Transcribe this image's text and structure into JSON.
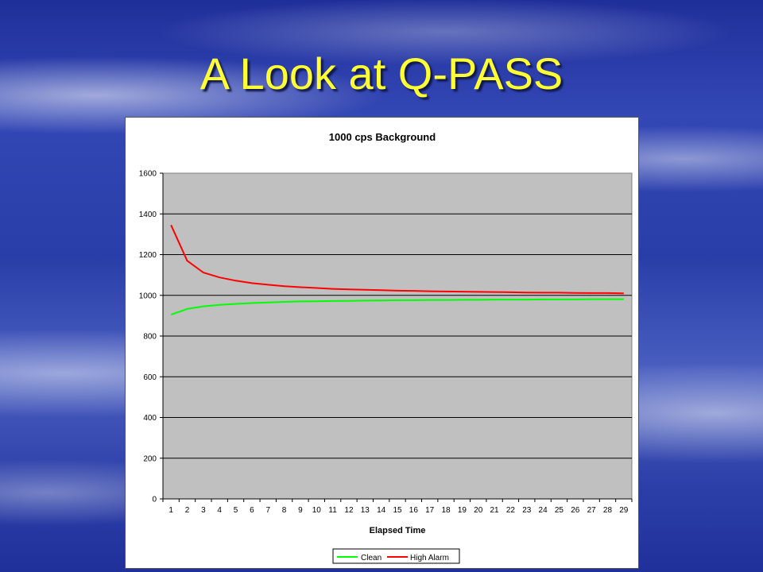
{
  "slide": {
    "title": "A Look at Q-PASS"
  },
  "chart_data": {
    "type": "line",
    "title": "1000 cps Background",
    "xlabel": "Elapsed Time",
    "ylabel": "",
    "ylim": [
      0,
      1600
    ],
    "yticks": [
      0,
      200,
      400,
      600,
      800,
      1000,
      1200,
      1400,
      1600
    ],
    "categories": [
      1,
      2,
      3,
      4,
      5,
      6,
      7,
      8,
      9,
      10,
      11,
      12,
      13,
      14,
      15,
      16,
      17,
      18,
      19,
      20,
      21,
      22,
      23,
      24,
      25,
      26,
      27,
      28,
      29
    ],
    "grid": true,
    "plot_background": "#c0c0c0",
    "legend_position": "bottom",
    "series": [
      {
        "name": "Clean",
        "color": "#00ff00",
        "values": [
          905,
          933,
          946,
          953,
          958,
          962,
          965,
          968,
          970,
          971,
          972,
          973,
          974,
          975,
          976,
          976,
          977,
          977,
          978,
          978,
          979,
          979,
          979,
          980,
          980,
          980,
          981,
          981,
          981
        ]
      },
      {
        "name": "High Alarm",
        "color": "#ff0000",
        "values": [
          1345,
          1170,
          1112,
          1088,
          1072,
          1060,
          1052,
          1045,
          1040,
          1036,
          1032,
          1029,
          1027,
          1025,
          1023,
          1022,
          1020,
          1019,
          1018,
          1017,
          1016,
          1015,
          1014,
          1013,
          1013,
          1012,
          1011,
          1011,
          1010
        ]
      }
    ]
  }
}
